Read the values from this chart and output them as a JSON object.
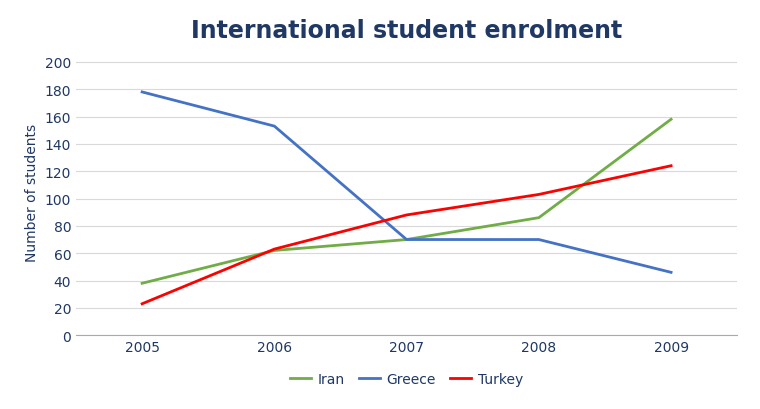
{
  "title": "International student enrolment",
  "ylabel": "Number of students",
  "years": [
    2005,
    2006,
    2007,
    2008,
    2009
  ],
  "iran": [
    38,
    62,
    70,
    86,
    158
  ],
  "greece": [
    178,
    153,
    70,
    70,
    46
  ],
  "turkey": [
    23,
    63,
    88,
    103,
    124
  ],
  "iran_color": "#70ad47",
  "greece_color": "#4472c4",
  "turkey_color": "#ff0000",
  "line_width": 2.0,
  "ylim": [
    0,
    210
  ],
  "yticks": [
    0,
    20,
    40,
    60,
    80,
    100,
    120,
    140,
    160,
    180,
    200
  ],
  "title_fontsize": 17,
  "title_fontweight": "bold",
  "title_color": "#1f3864",
  "axis_label_fontsize": 10,
  "legend_fontsize": 10,
  "tick_fontsize": 10,
  "grid_color": "#d9d9d9",
  "background_color": "#ffffff",
  "xlim_left": 2004.5,
  "xlim_right": 2009.5
}
